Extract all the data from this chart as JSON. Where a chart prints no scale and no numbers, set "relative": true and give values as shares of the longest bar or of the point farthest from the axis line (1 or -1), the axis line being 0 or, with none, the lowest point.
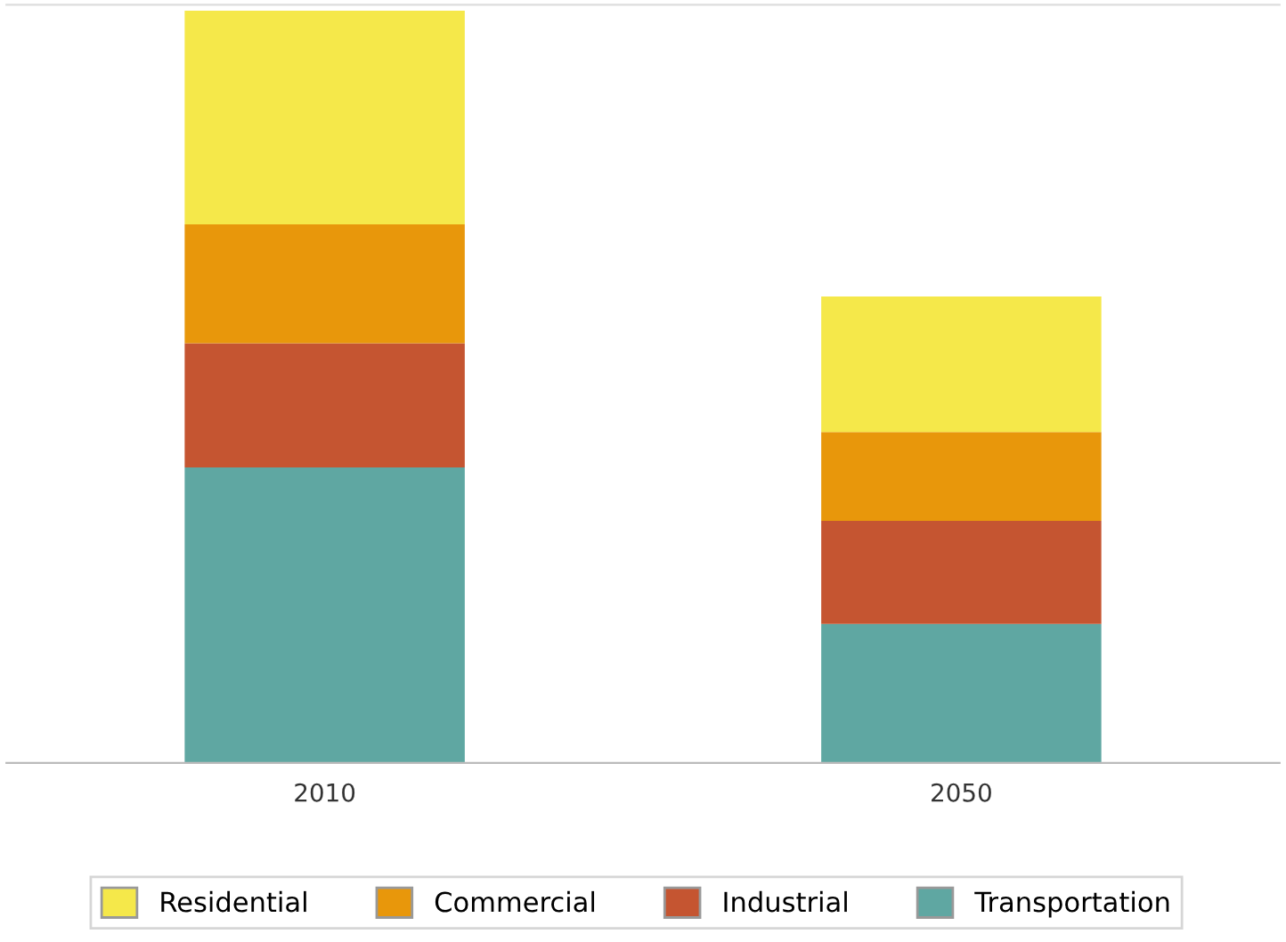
{
  "chart_data": {
    "type": "bar",
    "stacked": true,
    "relative": true,
    "categories": [
      "2010",
      "2050"
    ],
    "series": [
      {
        "name": "Transportation",
        "color": "#5fa7a2",
        "values": [
          0.393,
          0.185
        ]
      },
      {
        "name": "Industrial",
        "color": "#c55531",
        "values": [
          0.165,
          0.137
        ]
      },
      {
        "name": "Commercial",
        "color": "#e8970b",
        "values": [
          0.158,
          0.118
        ]
      },
      {
        "name": "Residential",
        "color": "#f5e84a",
        "values": [
          0.284,
          0.18
        ]
      }
    ],
    "legend": "bottom",
    "grid": false
  }
}
